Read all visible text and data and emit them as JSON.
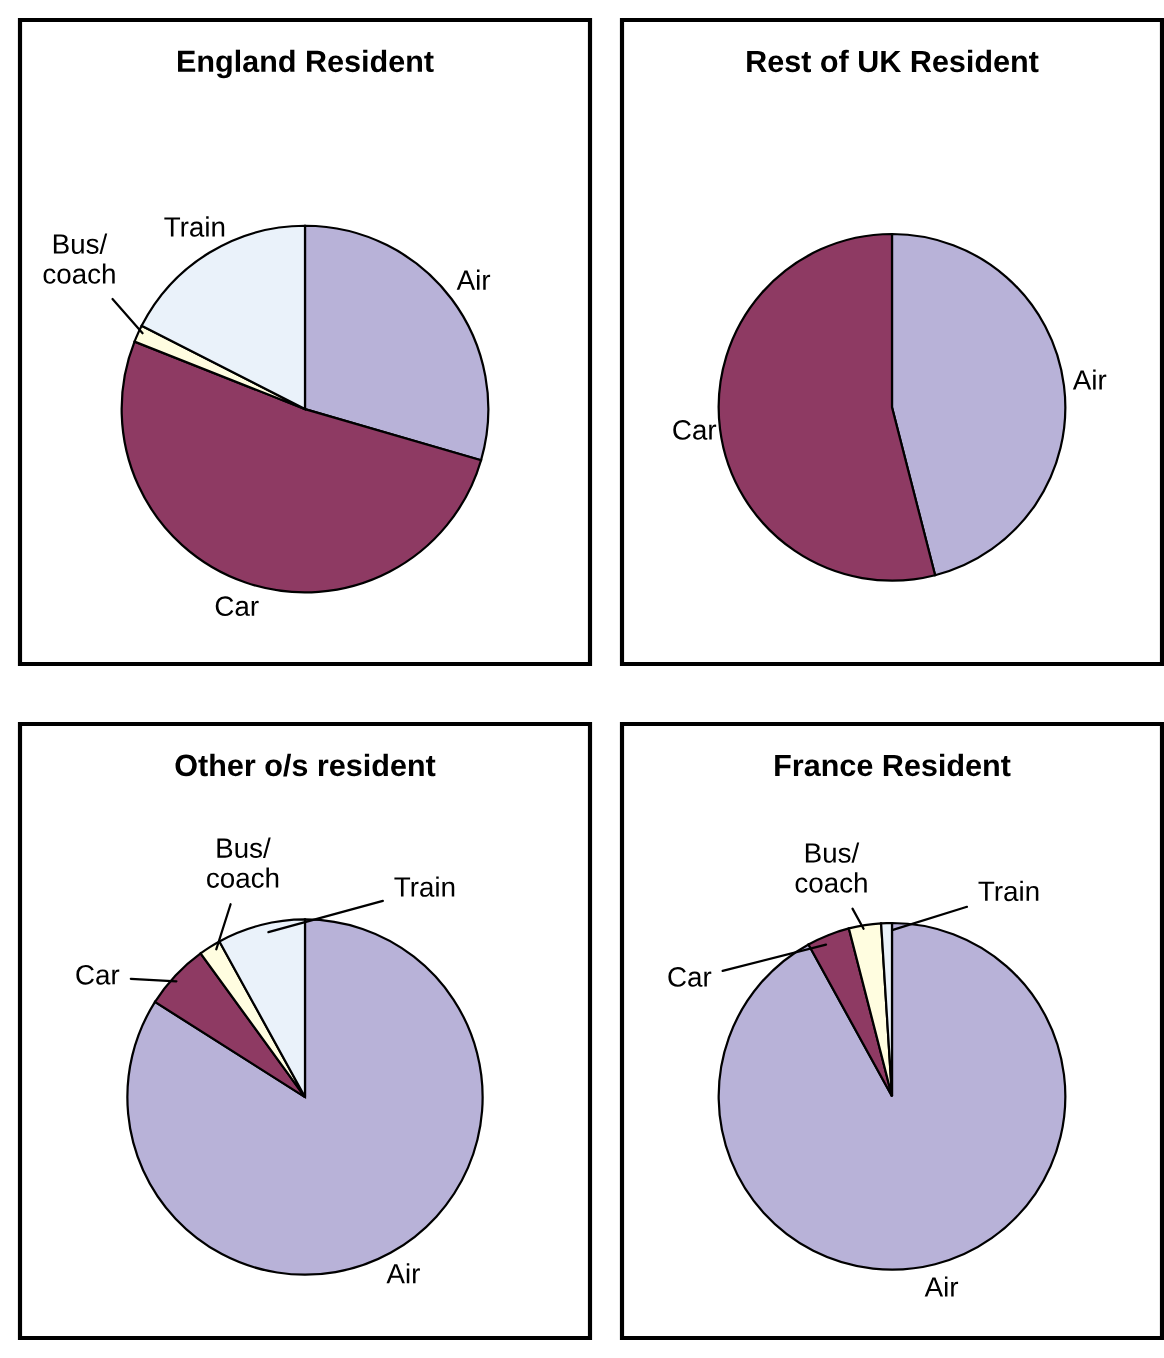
{
  "chart_data": [
    {
      "type": "pie",
      "title": "England Resident",
      "categories": [
        "Air",
        "Car",
        "Bus/\ncoach",
        "Train"
      ],
      "values": [
        29.5,
        51.5,
        1.5,
        17.5
      ],
      "colors": [
        "#b8b2d8",
        "#8e3a63",
        "#fffde0",
        "#eaf2fa"
      ]
    },
    {
      "type": "pie",
      "title": "Rest of UK Resident",
      "categories": [
        "Air",
        "Car"
      ],
      "values": [
        46,
        54
      ],
      "colors": [
        "#b8b2d8",
        "#8e3a63"
      ]
    },
    {
      "type": "pie",
      "title": "Other o/s resident",
      "categories": [
        "Air",
        "Car",
        "Bus/\ncoach",
        "Train"
      ],
      "values": [
        84,
        6,
        2,
        8
      ],
      "colors": [
        "#b8b2d8",
        "#8e3a63",
        "#fffde0",
        "#eaf2fa"
      ]
    },
    {
      "type": "pie",
      "title": "France Resident",
      "categories": [
        "Air",
        "Car",
        "Bus/\ncoach",
        "Train"
      ],
      "values": [
        92,
        4,
        3,
        1
      ],
      "colors": [
        "#b8b2d8",
        "#8e3a63",
        "#fffde0",
        "#eaf2fa"
      ]
    }
  ]
}
